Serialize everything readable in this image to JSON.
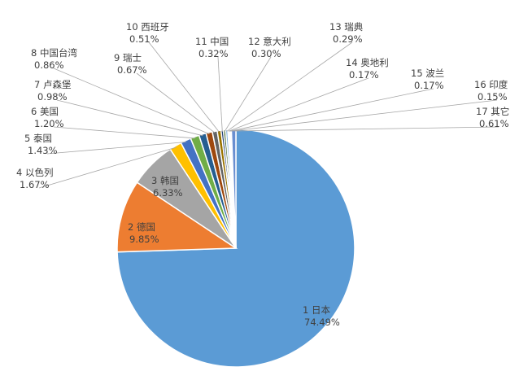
{
  "chart_data": {
    "type": "pie",
    "title": "",
    "start_angle_deg": 0,
    "direction": "clockwise",
    "slices": [
      {
        "index": "1",
        "label": "日本",
        "value": 74.49,
        "display": "74.49%",
        "color": "#5B9BD5"
      },
      {
        "index": "2",
        "label": "德国",
        "value": 9.85,
        "display": "9.85%",
        "color": "#ED7D31"
      },
      {
        "index": "3",
        "label": "韩国",
        "value": 6.33,
        "display": "6.33%",
        "color": "#A5A5A5"
      },
      {
        "index": "4",
        "label": "以色列",
        "value": 1.67,
        "display": "1.67%",
        "color": "#FFC000"
      },
      {
        "index": "5",
        "label": "泰国",
        "value": 1.43,
        "display": "1.43%",
        "color": "#4472C4"
      },
      {
        "index": "6",
        "label": "美国",
        "value": 1.2,
        "display": "1.20%",
        "color": "#70AD47"
      },
      {
        "index": "7",
        "label": "卢森堡",
        "value": 0.98,
        "display": "0.98%",
        "color": "#255E91"
      },
      {
        "index": "8",
        "label": "中国台湾",
        "value": 0.86,
        "display": "0.86%",
        "color": "#9E480E"
      },
      {
        "index": "9",
        "label": "瑞士",
        "value": 0.67,
        "display": "0.67%",
        "color": "#636363"
      },
      {
        "index": "10",
        "label": "西班牙",
        "value": 0.51,
        "display": "0.51%",
        "color": "#997300"
      },
      {
        "index": "11",
        "label": "中国",
        "value": 0.32,
        "display": "0.32%",
        "color": "#264478"
      },
      {
        "index": "12",
        "label": "意大利",
        "value": 0.3,
        "display": "0.30%",
        "color": "#43682B"
      },
      {
        "index": "13",
        "label": "瑞典",
        "value": 0.29,
        "display": "0.29%",
        "color": "#7CAFDD"
      },
      {
        "index": "14",
        "label": "奥地利",
        "value": 0.17,
        "display": "0.17%",
        "color": "#F1975A"
      },
      {
        "index": "15",
        "label": "波兰",
        "value": 0.17,
        "display": "0.17%",
        "color": "#B7B7B7"
      },
      {
        "index": "16",
        "label": "印度",
        "value": 0.15,
        "display": "0.15%",
        "color": "#FFCD33"
      },
      {
        "index": "17",
        "label": "其它",
        "value": 0.61,
        "display": "0.61%",
        "color": "#698ED0"
      }
    ]
  }
}
